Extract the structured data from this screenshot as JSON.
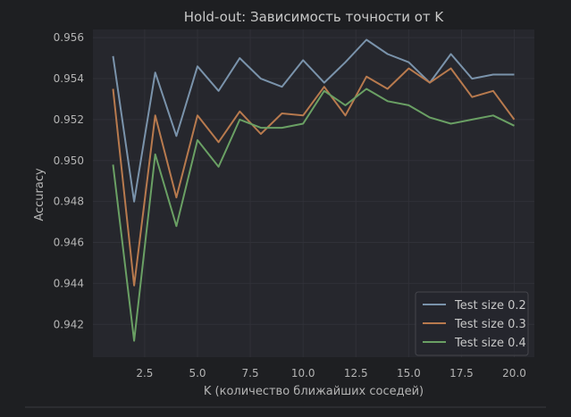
{
  "chart_data": {
    "type": "line",
    "title": "Hold-out: Зависимость точности от K",
    "xlabel": "K (количество ближайших соседей)",
    "ylabel": "Accuracy",
    "x": [
      1,
      2,
      3,
      4,
      5,
      6,
      7,
      8,
      9,
      10,
      11,
      12,
      13,
      14,
      15,
      16,
      17,
      18,
      19,
      20
    ],
    "xlim": [
      0.05,
      20.95
    ],
    "ylim": [
      0.9404,
      0.9564
    ],
    "x_ticks": [
      2.5,
      5.0,
      7.5,
      10.0,
      12.5,
      15.0,
      17.5,
      20.0
    ],
    "x_tick_labels": [
      "2.5",
      "5.0",
      "7.5",
      "10.0",
      "12.5",
      "15.0",
      "17.5",
      "20.0"
    ],
    "y_ticks": [
      0.942,
      0.944,
      0.946,
      0.948,
      0.95,
      0.952,
      0.954,
      0.956
    ],
    "y_tick_labels": [
      "0.942",
      "0.944",
      "0.946",
      "0.948",
      "0.950",
      "0.952",
      "0.954",
      "0.956"
    ],
    "grid": true,
    "legend_position": "lower-right",
    "series": [
      {
        "name": "Test size 0.2",
        "color": "#7a93ab",
        "values": [
          0.9551,
          0.948,
          0.9543,
          0.9512,
          0.9546,
          0.9534,
          0.955,
          0.954,
          0.9536,
          0.9549,
          0.9538,
          0.9548,
          0.9559,
          0.9552,
          0.9548,
          0.9538,
          0.9552,
          0.954,
          0.9542,
          0.9542
        ]
      },
      {
        "name": "Test size 0.3",
        "color": "#b87a4e",
        "values": [
          0.9535,
          0.9439,
          0.9522,
          0.9482,
          0.9522,
          0.9509,
          0.9524,
          0.9513,
          0.9523,
          0.9522,
          0.9536,
          0.9522,
          0.9541,
          0.9535,
          0.9545,
          0.9538,
          0.9545,
          0.9531,
          0.9534,
          0.952
        ]
      },
      {
        "name": "Test size 0.4",
        "color": "#6aa064",
        "values": [
          0.9498,
          0.9412,
          0.9503,
          0.9468,
          0.951,
          0.9497,
          0.952,
          0.9516,
          0.9516,
          0.9518,
          0.9534,
          0.9527,
          0.9535,
          0.9529,
          0.9527,
          0.9521,
          0.9518,
          0.952,
          0.9522,
          0.9517
        ]
      }
    ]
  }
}
